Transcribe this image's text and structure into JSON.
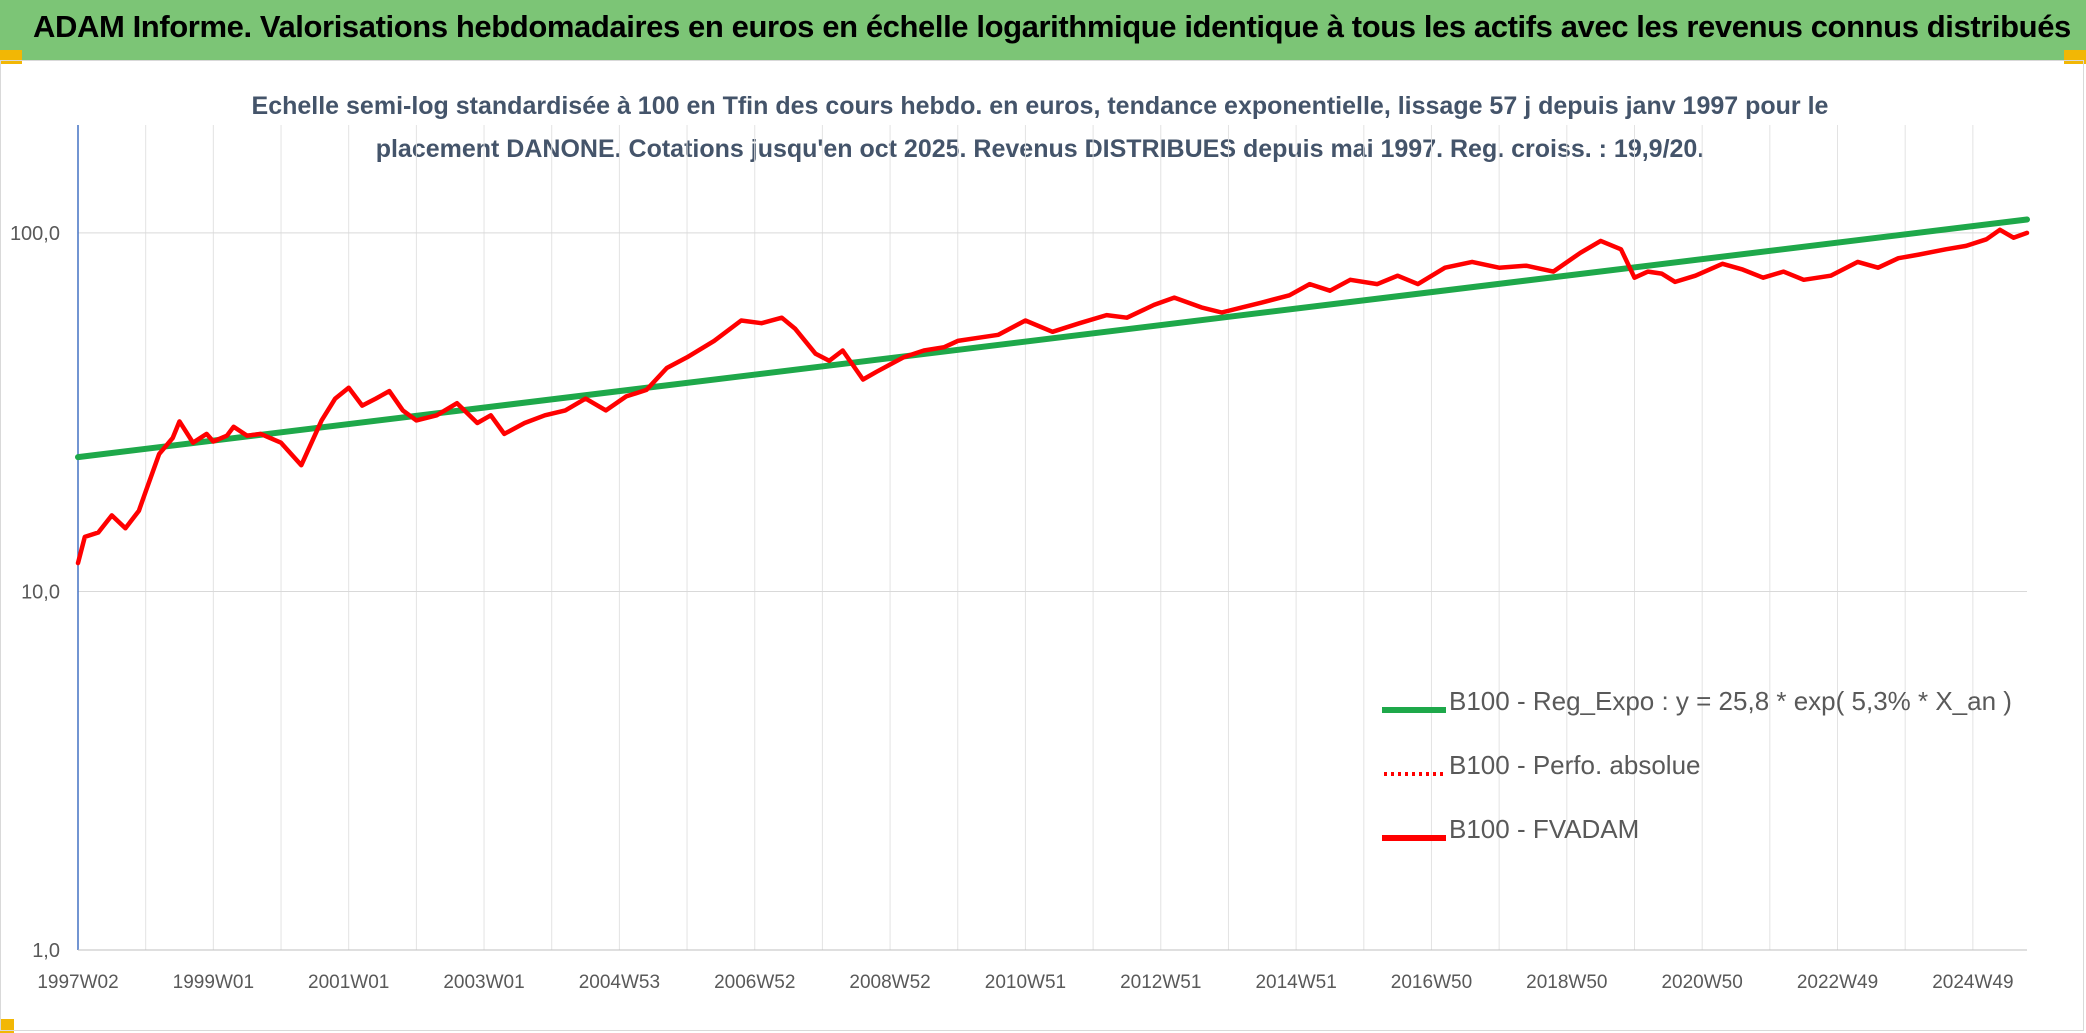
{
  "header": {
    "title": "ADAM Informe. Valorisations hebdomadaires en euros en échelle logarithmique identique à tous les actifs avec les revenus connus distribués"
  },
  "chart_data": {
    "type": "line",
    "title": "Echelle semi-log standardisée à 100 en Tfin des cours hebdo. en euros, tendance exponentielle, lissage 57 j depuis janv 1997 pour le placement DANONE. Cotations jusqu'en oct 2025. Revenus DISTRIBUES depuis mai 1997. Reg. croiss. : 19,9/20.",
    "xlabel": "",
    "ylabel": "",
    "y_scale": "log",
    "ylim": [
      1,
      200
    ],
    "y_ticks": [
      {
        "value": 1,
        "label": "1,0"
      },
      {
        "value": 10,
        "label": "10,0"
      },
      {
        "value": 100,
        "label": "100,0"
      }
    ],
    "x_range": [
      1997.0,
      2025.8
    ],
    "x_ticks": [
      {
        "value": 1997.0,
        "label": "1997W02"
      },
      {
        "value": 1999.0,
        "label": "1999W01"
      },
      {
        "value": 2001.0,
        "label": "2001W01"
      },
      {
        "value": 2003.0,
        "label": "2003W01"
      },
      {
        "value": 2005.0,
        "label": "2004W53"
      },
      {
        "value": 2007.0,
        "label": "2006W52"
      },
      {
        "value": 2009.0,
        "label": "2008W52"
      },
      {
        "value": 2011.0,
        "label": "2010W51"
      },
      {
        "value": 2013.0,
        "label": "2012W51"
      },
      {
        "value": 2015.0,
        "label": "2014W51"
      },
      {
        "value": 2017.0,
        "label": "2016W50"
      },
      {
        "value": 2019.0,
        "label": "2018W50"
      },
      {
        "value": 2021.0,
        "label": "2020W50"
      },
      {
        "value": 2023.0,
        "label": "2022W49"
      },
      {
        "value": 2025.0,
        "label": "2024W49"
      }
    ],
    "grid": true,
    "legend_position": "bottom-right",
    "series": [
      {
        "name": "B100 - Reg_Expo : y = 25,8 * exp( 5,3% *  X_an )",
        "color": "#1ea84a",
        "style": "solid",
        "x": [
          1997.0,
          2025.8
        ],
        "values": [
          23.7,
          109.0
        ]
      },
      {
        "name": "B100 - Perfo. absolue",
        "color": "#ff0000",
        "style": "dotted",
        "x": [],
        "values": []
      },
      {
        "name": "B100 - FVADAM",
        "color": "#ff0000",
        "style": "solid",
        "x": [
          1997.0,
          1997.1,
          1997.3,
          1997.5,
          1997.7,
          1997.9,
          1998.0,
          1998.2,
          1998.4,
          1998.5,
          1998.7,
          1998.9,
          1999.0,
          1999.2,
          1999.3,
          1999.5,
          1999.7,
          2000.0,
          2000.3,
          2000.6,
          2000.8,
          2001.0,
          2001.2,
          2001.4,
          2001.6,
          2001.8,
          2002.0,
          2002.3,
          2002.6,
          2002.9,
          2003.1,
          2003.3,
          2003.6,
          2003.9,
          2004.2,
          2004.5,
          2004.8,
          2005.1,
          2005.4,
          2005.7,
          2006.0,
          2006.4,
          2006.8,
          2007.1,
          2007.4,
          2007.6,
          2007.9,
          2008.1,
          2008.3,
          2008.6,
          2008.8,
          2009.2,
          2009.5,
          2009.8,
          2010.0,
          2010.3,
          2010.6,
          2011.0,
          2011.4,
          2011.8,
          2012.2,
          2012.5,
          2012.9,
          2013.2,
          2013.6,
          2013.9,
          2014.2,
          2014.5,
          2014.9,
          2015.2,
          2015.5,
          2015.8,
          2016.2,
          2016.5,
          2016.8,
          2017.2,
          2017.6,
          2018.0,
          2018.4,
          2018.8,
          2019.2,
          2019.5,
          2019.8,
          2020.0,
          2020.2,
          2020.4,
          2020.6,
          2020.9,
          2021.3,
          2021.6,
          2021.9,
          2022.2,
          2022.5,
          2022.9,
          2023.3,
          2023.6,
          2023.9,
          2024.2,
          2024.6,
          2024.9,
          2025.2,
          2025.4,
          2025.6,
          2025.8
        ],
        "values": [
          12.0,
          14.2,
          14.6,
          16.3,
          15.0,
          16.8,
          19.0,
          24.2,
          26.8,
          29.8,
          26.0,
          27.5,
          26.2,
          27.2,
          28.8,
          27.2,
          27.5,
          26.0,
          22.5,
          30.0,
          34.5,
          37.0,
          33.0,
          34.5,
          36.2,
          32.0,
          30.0,
          31.0,
          33.5,
          29.5,
          31.0,
          27.5,
          29.5,
          31.0,
          32.0,
          34.5,
          32.0,
          35.0,
          36.5,
          42.0,
          45.0,
          50.0,
          57.0,
          56.0,
          58.0,
          54.0,
          46.0,
          44.0,
          47.0,
          39.0,
          41.0,
          45.0,
          47.0,
          48.0,
          50.0,
          51.0,
          52.0,
          57.0,
          53.0,
          56.0,
          59.0,
          58.0,
          63.0,
          66.0,
          62.0,
          60.0,
          62.0,
          64.0,
          67.0,
          72.0,
          69.0,
          74.0,
          72.0,
          76.0,
          72.0,
          80.0,
          83.0,
          80.0,
          81.0,
          78.0,
          88.0,
          95.0,
          90.0,
          75.0,
          78.0,
          77.0,
          73.0,
          76.0,
          82.0,
          79.0,
          75.0,
          78.0,
          74.0,
          76.0,
          83.0,
          80.0,
          85.0,
          87.0,
          90.0,
          92.0,
          96.0,
          102.0,
          97.0,
          100.0
        ]
      }
    ]
  }
}
